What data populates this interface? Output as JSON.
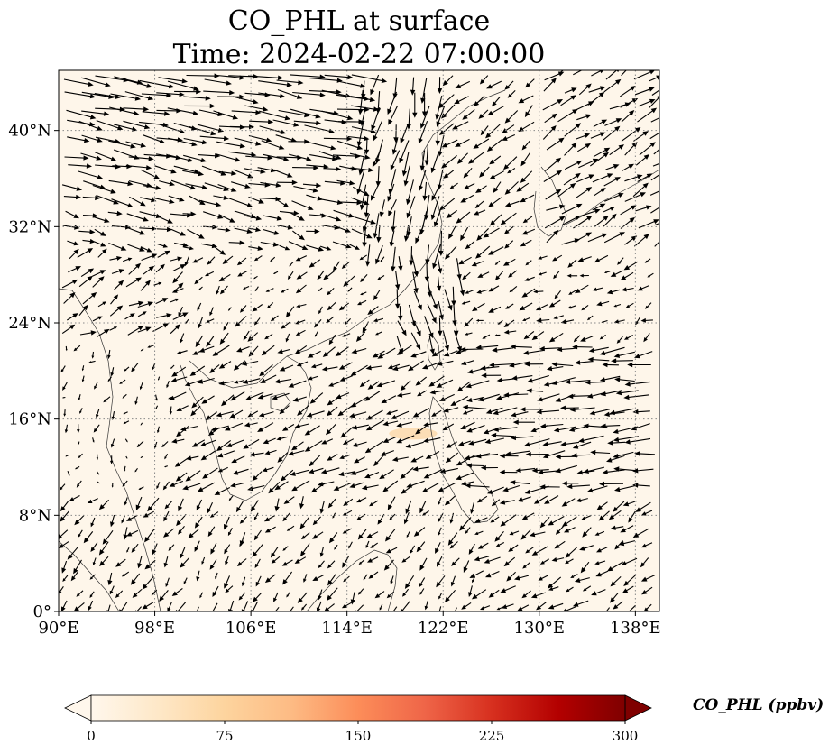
{
  "title": {
    "line1": "CO_PHL at surface",
    "line2": "Time: 2024-02-22 07:00:00"
  },
  "map": {
    "projection": "plate-carree",
    "lon_range": [
      90,
      140
    ],
    "lat_range": [
      0,
      45
    ],
    "background_color": "#fef6ea",
    "gridlines": "dotted",
    "lon_ticks": [
      {
        "value": 90,
        "label": "90°E"
      },
      {
        "value": 98,
        "label": "98°E"
      },
      {
        "value": 106,
        "label": "106°E"
      },
      {
        "value": 114,
        "label": "114°E"
      },
      {
        "value": 122,
        "label": "122°E"
      },
      {
        "value": 130,
        "label": "130°E"
      },
      {
        "value": 138,
        "label": "138°E"
      }
    ],
    "lat_ticks": [
      {
        "value": 0,
        "label": "0°"
      },
      {
        "value": 8,
        "label": "8°N"
      },
      {
        "value": 16,
        "label": "16°N"
      },
      {
        "value": 24,
        "label": "24°N"
      },
      {
        "value": 32,
        "label": "32°N"
      },
      {
        "value": 40,
        "label": "40°N"
      }
    ],
    "plume": {
      "lon": [
        117.5,
        121.5
      ],
      "lat": [
        14.3,
        15.3
      ],
      "color": "#fcdcb0"
    },
    "wind_arrows": "black vector field (quiver) across domain"
  },
  "colorbar": {
    "title": "CO_PHL (ppbv)",
    "min": 0,
    "max": 300,
    "extend": "both",
    "colormap": "OrRd",
    "stops": [
      "#fff7ec",
      "#fee8c8",
      "#fdd49e",
      "#fdbb84",
      "#fc8d59",
      "#ef6548",
      "#d7301f",
      "#b30000",
      "#7f0000"
    ],
    "ticks": [
      {
        "value": 0,
        "label": "0"
      },
      {
        "value": 75,
        "label": "75"
      },
      {
        "value": 150,
        "label": "150"
      },
      {
        "value": 225,
        "label": "225"
      },
      {
        "value": 300,
        "label": "300"
      }
    ]
  }
}
